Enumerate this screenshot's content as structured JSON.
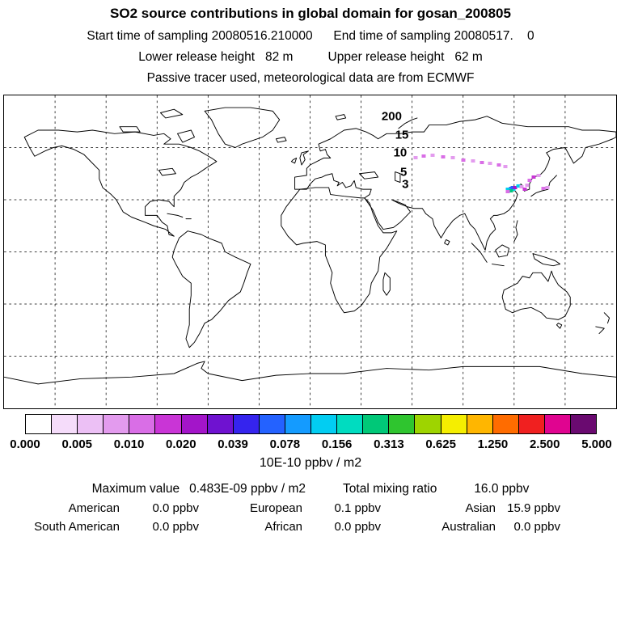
{
  "header": {
    "title": "SO2 source contributions in global domain for gosan_200805",
    "line_sampling": "Start time of sampling 20080516.210000      End time of sampling 20080517.    0",
    "line_release": "Lower release height   82 m          Upper release height   62 m",
    "line_tracer": "Passive tracer used, meteorological data are from ECMWF"
  },
  "map": {
    "labels": [
      {
        "text": "200",
        "lon": 48,
        "lat": 78
      },
      {
        "text": "15",
        "lon": 54,
        "lat": 67
      },
      {
        "text": "10",
        "lon": 53,
        "lat": 57
      },
      {
        "text": "5",
        "lon": 55,
        "lat": 46
      },
      {
        "text": "3",
        "lon": 56,
        "lat": 39
      }
    ],
    "markers": [
      {
        "lon": 116.5,
        "lat": 36.2,
        "color": "#00cfee"
      },
      {
        "lon": 118.2,
        "lat": 36.4,
        "color": "#2462ff"
      },
      {
        "lon": 119.8,
        "lat": 36.0,
        "color": "#00cfee"
      },
      {
        "lon": 117.5,
        "lat": 35.6,
        "color": "#02cdf2"
      },
      {
        "lon": 119.0,
        "lat": 37.0,
        "color": "#2462ff"
      },
      {
        "lon": 118.4,
        "lat": 34.9,
        "color": "#00c878"
      },
      {
        "lon": 116.2,
        "lat": 34.6,
        "color": "#d96ee6"
      },
      {
        "lon": 120.6,
        "lat": 37.2,
        "color": "#a315c9"
      },
      {
        "lon": 122.4,
        "lat": 38.1,
        "color": "#00cfee"
      },
      {
        "lon": 124.2,
        "lat": 37.4,
        "color": "#e39bee"
      },
      {
        "lon": 126.1,
        "lat": 36.0,
        "color": "#c935d6"
      },
      {
        "lon": 127.6,
        "lat": 38.2,
        "color": "#e39bee"
      },
      {
        "lon": 129.2,
        "lat": 41.2,
        "color": "#d96ee6"
      },
      {
        "lon": 131.4,
        "lat": 43.1,
        "color": "#c935d6"
      },
      {
        "lon": 134.2,
        "lat": 44.0,
        "color": "#e39bee"
      },
      {
        "lon": 137.1,
        "lat": 36.6,
        "color": "#d96ee6"
      },
      {
        "lon": 139.6,
        "lat": 37.2,
        "color": "#e39bee"
      },
      {
        "lon": 62,
        "lat": 54.0,
        "color": "#e39bee"
      },
      {
        "lon": 67,
        "lat": 55.0,
        "color": "#d96ee6"
      },
      {
        "lon": 72,
        "lat": 55.5,
        "color": "#e39bee"
      },
      {
        "lon": 78,
        "lat": 54.5,
        "color": "#d96ee6"
      },
      {
        "lon": 84,
        "lat": 54.0,
        "color": "#e39bee"
      },
      {
        "lon": 90,
        "lat": 53.0,
        "color": "#d96ee6"
      },
      {
        "lon": 96,
        "lat": 52.5,
        "color": "#e39bee"
      },
      {
        "lon": 101,
        "lat": 51.5,
        "color": "#d96ee6"
      },
      {
        "lon": 106,
        "lat": 51.0,
        "color": "#e39bee"
      },
      {
        "lon": 111,
        "lat": 50.0,
        "color": "#d96ee6"
      },
      {
        "lon": 115,
        "lat": 49.0,
        "color": "#e39bee"
      }
    ]
  },
  "colorbar": {
    "colors": [
      "#ffffff",
      "#f5dcfa",
      "#ecc0f5",
      "#e39bee",
      "#d96ee6",
      "#c935d6",
      "#a315c9",
      "#6f12d0",
      "#3524ee",
      "#2462ff",
      "#149bff",
      "#02cdf2",
      "#00dcc0",
      "#00c878",
      "#2fc52f",
      "#9ed400",
      "#f5ee00",
      "#ffb600",
      "#ff6c00",
      "#f02020",
      "#e00490",
      "#6a0a70"
    ],
    "ticks": [
      "0.000",
      "0.005",
      "0.010",
      "0.020",
      "0.039",
      "0.078",
      "0.156",
      "0.313",
      "0.625",
      "1.250",
      "2.500",
      "5.000"
    ],
    "unit": "10E-10 ppbv / m2"
  },
  "stats": {
    "max_label": "Maximum value",
    "max_value": "0.483E-09 ppbv / m2",
    "total_label": "Total mixing ratio",
    "total_value": "16.0 ppbv",
    "regions": [
      {
        "name": "American",
        "value": "0.0 ppbv"
      },
      {
        "name": "European",
        "value": "0.1 ppbv"
      },
      {
        "name": "Asian",
        "value": "15.9 ppbv"
      },
      {
        "name": "South American",
        "value": "0.0 ppbv"
      },
      {
        "name": "African",
        "value": "0.0 ppbv"
      },
      {
        "name": "Australian",
        "value": "0.0 ppbv"
      }
    ]
  },
  "chart_data": {
    "type": "heatmap",
    "title": "SO2 source contributions in global domain for gosan_200805",
    "projection": "equirectangular global, lon -180..180, lat -90..90",
    "grid": {
      "on": true,
      "spacing_deg": 30,
      "style": "dashed"
    },
    "colorbar_levels": [
      0.0,
      0.005,
      0.01,
      0.02,
      0.039,
      0.078,
      0.156,
      0.313,
      0.625,
      1.25,
      2.5,
      5.0
    ],
    "colorbar_unit": "10E-10 ppbv / m2",
    "max_value": "0.483E-09 ppbv / m2",
    "total_mixing_ratio_ppbv": 16.0,
    "region_contributions_ppbv": {
      "American": 0.0,
      "European": 0.1,
      "Asian": 15.9,
      "South American": 0.0,
      "African": 0.0,
      "Australian": 0.0
    },
    "source_hotspot": "Eastern China / Korea region (~115-130E, 34-44N), scattered traces across Siberia (~60-115E, 49-56N)"
  }
}
